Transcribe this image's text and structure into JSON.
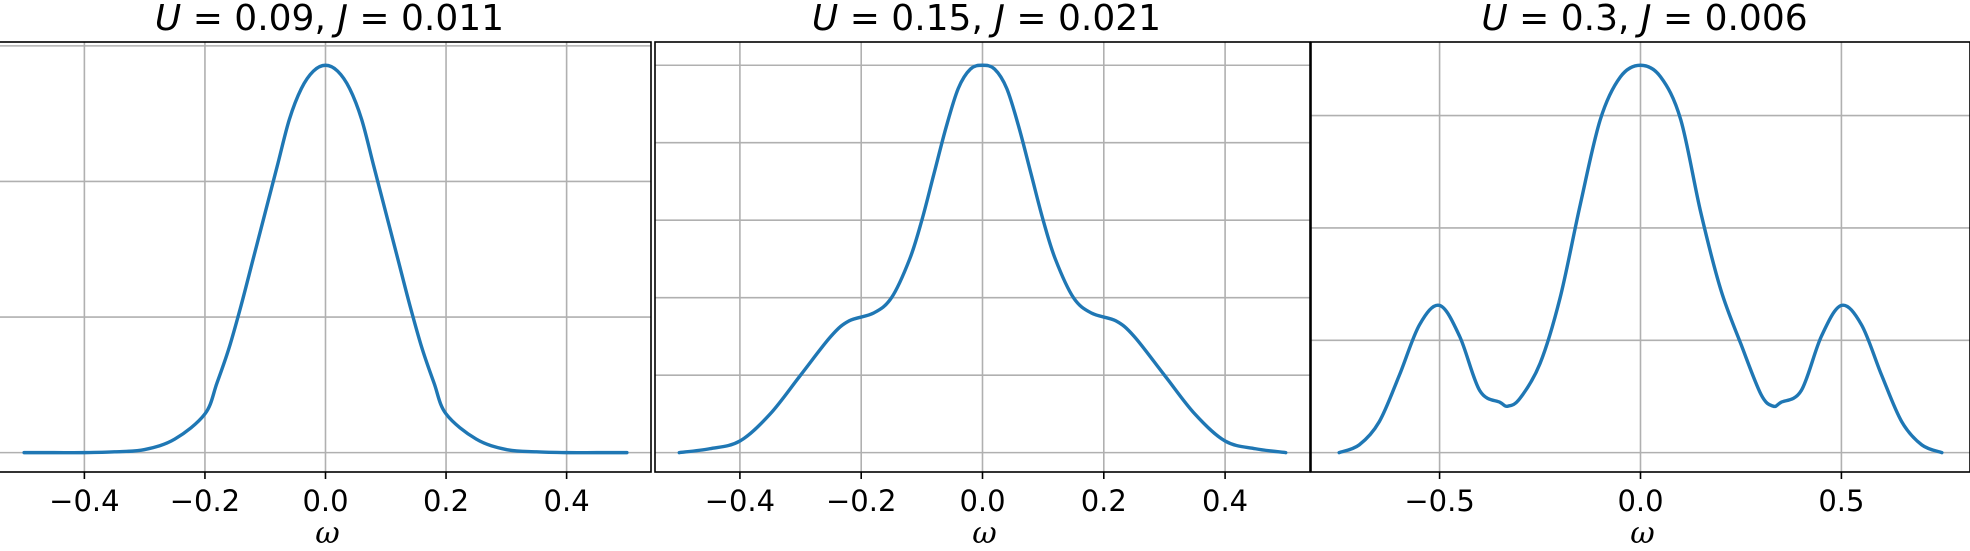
{
  "chart_data": [
    {
      "type": "line",
      "title": "U = 0.09, J = 0.011",
      "title_parts": {
        "u_sym": "U",
        "u_val": " = 0.09, ",
        "j_sym": "J",
        "j_val": " = 0.011"
      },
      "xlabel": "ω",
      "xlim": [
        -0.54,
        0.54
      ],
      "ylim": [
        -0.05,
        1.06
      ],
      "xticks": [
        -0.4,
        -0.2,
        0.0,
        0.2,
        0.4
      ],
      "xtick_labels": [
        "−0.4",
        "−0.2",
        "0.0",
        "0.2",
        "0.4"
      ],
      "yticks": [
        0.0,
        0.35,
        0.7,
        1.05
      ],
      "grid": true,
      "series": [
        {
          "color": "#1f77b4",
          "x": [
            -0.5,
            -0.45,
            -0.4,
            -0.35,
            -0.3,
            -0.25,
            -0.2,
            -0.18,
            -0.16,
            -0.14,
            -0.12,
            -0.1,
            -0.08,
            -0.06,
            -0.04,
            -0.02,
            0.0,
            0.02,
            0.04,
            0.06,
            0.08,
            0.1,
            0.12,
            0.14,
            0.16,
            0.18,
            0.2,
            0.25,
            0.3,
            0.35,
            0.4,
            0.45,
            0.5
          ],
          "y": [
            0.0,
            0.0,
            0.0,
            0.002,
            0.008,
            0.035,
            0.1,
            0.18,
            0.27,
            0.38,
            0.5,
            0.62,
            0.74,
            0.86,
            0.94,
            0.985,
            1.0,
            0.985,
            0.94,
            0.86,
            0.74,
            0.62,
            0.5,
            0.38,
            0.27,
            0.18,
            0.1,
            0.035,
            0.008,
            0.002,
            0.0,
            0.0,
            0.0
          ]
        }
      ]
    },
    {
      "type": "line",
      "title": "U = 0.15, J = 0.021",
      "title_parts": {
        "u_sym": "U",
        "u_val": " = 0.15, ",
        "j_sym": "J",
        "j_val": " = 0.021"
      },
      "xlabel": "ω",
      "xlim": [
        -0.54,
        0.54
      ],
      "ylim": [
        -0.05,
        1.06
      ],
      "xticks": [
        -0.4,
        -0.2,
        0.0,
        0.2,
        0.4
      ],
      "xtick_labels": [
        "−0.4",
        "−0.2",
        "0.0",
        "0.2",
        "0.4"
      ],
      "yticks": [
        0.0,
        0.2,
        0.4,
        0.6,
        0.8,
        1.0
      ],
      "grid": true,
      "series": [
        {
          "color": "#1f77b4",
          "x": [
            -0.5,
            -0.45,
            -0.4,
            -0.35,
            -0.3,
            -0.25,
            -0.22,
            -0.18,
            -0.15,
            -0.12,
            -0.1,
            -0.08,
            -0.06,
            -0.04,
            -0.02,
            0.0,
            0.02,
            0.04,
            0.06,
            0.08,
            0.1,
            0.12,
            0.15,
            0.18,
            0.22,
            0.25,
            0.3,
            0.35,
            0.4,
            0.45,
            0.5
          ],
          "y": [
            0.0,
            0.01,
            0.03,
            0.1,
            0.2,
            0.3,
            0.34,
            0.36,
            0.4,
            0.5,
            0.6,
            0.72,
            0.84,
            0.94,
            0.99,
            1.0,
            0.99,
            0.94,
            0.84,
            0.72,
            0.6,
            0.5,
            0.4,
            0.36,
            0.34,
            0.3,
            0.2,
            0.1,
            0.03,
            0.01,
            0.0
          ]
        }
      ]
    },
    {
      "type": "line",
      "title": "U = 0.3, J = 0.006",
      "title_parts": {
        "u_sym": "U",
        "u_val": " = 0.3, ",
        "j_sym": "J",
        "j_val": " = 0.006"
      },
      "xlabel": "ω",
      "xlim": [
        -0.82,
        0.82
      ],
      "ylim": [
        -0.05,
        1.06
      ],
      "xticks": [
        -0.5,
        0.0,
        0.5
      ],
      "xtick_labels": [
        "−0.5",
        "0.0",
        "0.5"
      ],
      "yticks": [
        0.0,
        0.29,
        0.58,
        0.87
      ],
      "grid": true,
      "series": [
        {
          "color": "#1f77b4",
          "x": [
            -0.75,
            -0.7,
            -0.65,
            -0.6,
            -0.55,
            -0.5,
            -0.45,
            -0.4,
            -0.35,
            -0.33,
            -0.3,
            -0.25,
            -0.2,
            -0.15,
            -0.1,
            -0.05,
            0.0,
            0.05,
            0.1,
            0.15,
            0.2,
            0.25,
            0.3,
            0.33,
            0.35,
            0.4,
            0.45,
            0.5,
            0.55,
            0.6,
            0.65,
            0.7,
            0.75
          ],
          "y": [
            0.0,
            0.02,
            0.08,
            0.2,
            0.33,
            0.38,
            0.3,
            0.16,
            0.13,
            0.12,
            0.14,
            0.23,
            0.4,
            0.64,
            0.86,
            0.97,
            1.0,
            0.97,
            0.86,
            0.62,
            0.42,
            0.28,
            0.15,
            0.12,
            0.13,
            0.16,
            0.3,
            0.38,
            0.33,
            0.2,
            0.08,
            0.02,
            0.0
          ]
        }
      ]
    }
  ]
}
